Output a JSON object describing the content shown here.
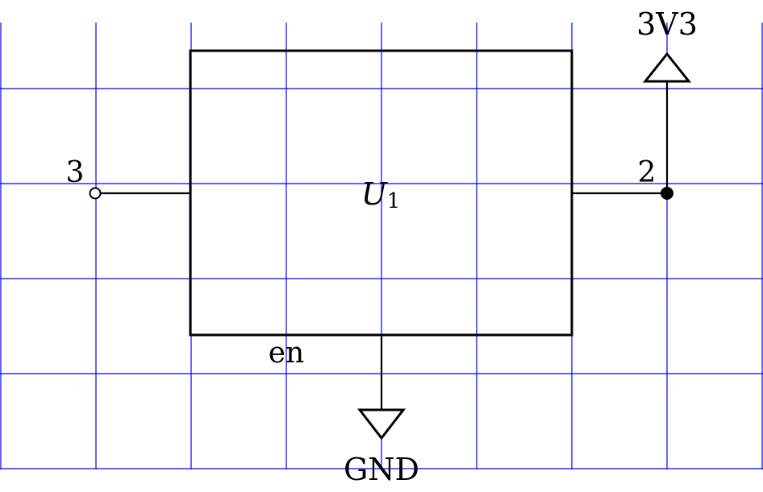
{
  "component": {
    "name_main": "U",
    "name_sub": "1"
  },
  "pins": {
    "left": "3",
    "right": "2",
    "bottom": "en"
  },
  "power": {
    "supply": "3V3",
    "ground": "GND"
  },
  "colors": {
    "grid": "#0000ff",
    "ink": "#000000",
    "background": "#ffffff"
  }
}
